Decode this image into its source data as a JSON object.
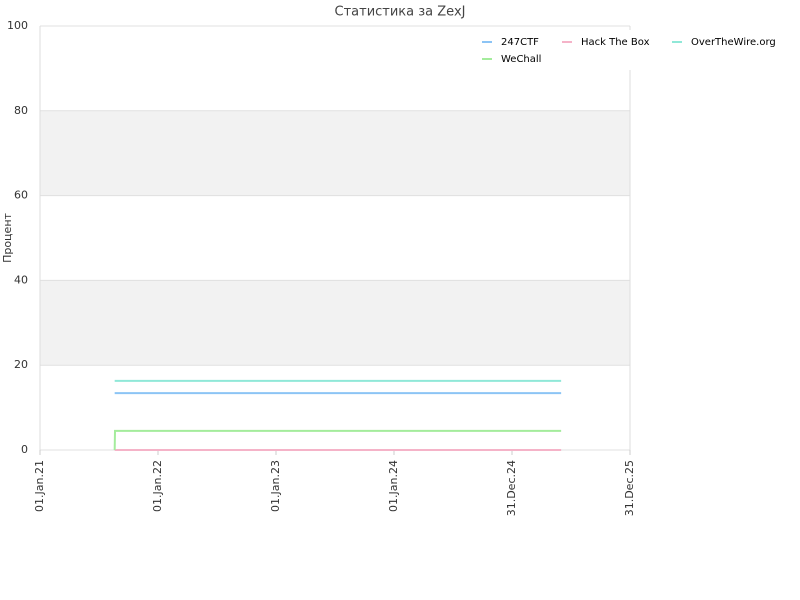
{
  "chart_data": {
    "type": "line",
    "title": "Статистика за ZexJ",
    "y_label": "Процент",
    "x": [
      "2021-08-20",
      "2021-08-21",
      "2025-06-01"
    ],
    "series": [
      {
        "name": "247CTF",
        "color": "#8cc4f5",
        "values": [
          13.4,
          13.4,
          13.4
        ]
      },
      {
        "name": "Hack The Box",
        "color": "#f5b3c8",
        "values": [
          0,
          0,
          0
        ]
      },
      {
        "name": "OverTheWire.org",
        "color": "#90e8d8",
        "values": [
          16.3,
          16.3,
          16.3
        ]
      },
      {
        "name": "WeChall",
        "color": "#a4ec9c",
        "values": [
          0,
          4.5,
          4.5
        ]
      }
    ],
    "xlim": [
      "2021-01-01",
      "2025-12-31"
    ],
    "xticks": [
      {
        "value": "2021-01-01",
        "label": "01.Jan.21"
      },
      {
        "value": "2022-01-01",
        "label": "01.Jan.22"
      },
      {
        "value": "2023-01-01",
        "label": "01.Jan.23"
      },
      {
        "value": "2024-01-01",
        "label": "01.Jan.24"
      },
      {
        "value": "2024-12-31",
        "label": "31.Dec.24"
      },
      {
        "value": "2025-12-31",
        "label": "31.Dec.25"
      }
    ],
    "ylim": [
      0,
      100
    ],
    "yticks": [
      0,
      20,
      40,
      60,
      80,
      100
    ],
    "grid": true,
    "legend": "top-right"
  }
}
